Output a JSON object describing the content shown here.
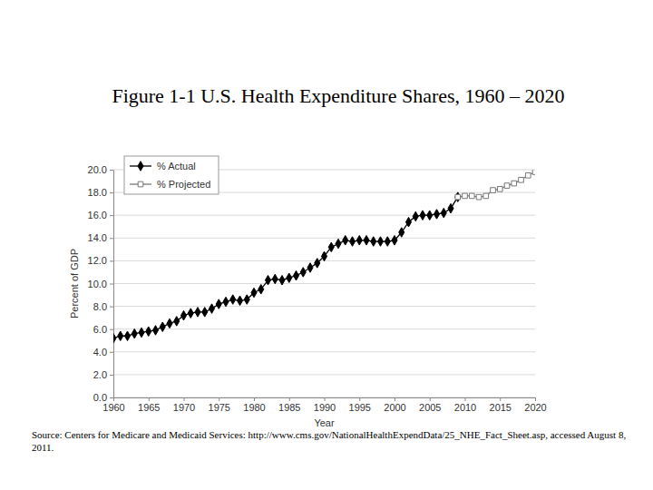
{
  "chart_data": {
    "type": "line",
    "title": "Figure 1-1 U.S. Health Expenditure Shares, 1960 – 2020",
    "x_label": "Year",
    "y_label": "Percent of GDP",
    "source": "Source: Centers for Medicare and Medicaid Services: http://www.cms.gov/NationalHealthExpendData/25_NHE_Fact_Sheet.asp, accessed August 8, 2011.",
    "x": [
      1960,
      1961,
      1962,
      1963,
      1964,
      1965,
      1966,
      1967,
      1968,
      1969,
      1970,
      1971,
      1972,
      1973,
      1974,
      1975,
      1976,
      1977,
      1978,
      1979,
      1980,
      1981,
      1982,
      1983,
      1984,
      1985,
      1986,
      1987,
      1988,
      1989,
      1990,
      1991,
      1992,
      1993,
      1994,
      1995,
      1996,
      1997,
      1998,
      1999,
      2000,
      2001,
      2002,
      2003,
      2004,
      2005,
      2006,
      2007,
      2008,
      2009,
      2010,
      2011,
      2012,
      2013,
      2014,
      2015,
      2016,
      2017,
      2018,
      2019,
      2020
    ],
    "series": [
      {
        "name": "% Actual",
        "color": "#000000",
        "marker": "diamond",
        "line_style": "solid",
        "values": [
          5.2,
          5.4,
          5.4,
          5.6,
          5.7,
          5.8,
          5.9,
          6.2,
          6.5,
          6.7,
          7.2,
          7.4,
          7.5,
          7.5,
          7.8,
          8.2,
          8.4,
          8.6,
          8.5,
          8.6,
          9.2,
          9.5,
          10.3,
          10.4,
          10.3,
          10.5,
          10.7,
          11.0,
          11.4,
          11.8,
          12.4,
          13.2,
          13.5,
          13.8,
          13.7,
          13.8,
          13.8,
          13.7,
          13.7,
          13.7,
          13.8,
          14.5,
          15.4,
          15.9,
          16.0,
          16.0,
          16.1,
          16.2,
          16.6,
          17.6,
          null,
          null,
          null,
          null,
          null,
          null,
          null,
          null,
          null,
          null,
          null
        ]
      },
      {
        "name": "% Projected",
        "color": "#777777",
        "marker": "open-square",
        "line_style": "solid",
        "values": [
          null,
          null,
          null,
          null,
          null,
          null,
          null,
          null,
          null,
          null,
          null,
          null,
          null,
          null,
          null,
          null,
          null,
          null,
          null,
          null,
          null,
          null,
          null,
          null,
          null,
          null,
          null,
          null,
          null,
          null,
          null,
          null,
          null,
          null,
          null,
          null,
          null,
          null,
          null,
          null,
          null,
          null,
          null,
          null,
          null,
          null,
          null,
          null,
          null,
          17.6,
          17.7,
          17.7,
          17.6,
          17.7,
          18.2,
          18.3,
          18.6,
          18.8,
          19.1,
          19.5,
          19.8
        ]
      }
    ],
    "xlim": [
      1960,
      2020
    ],
    "xticks": [
      1960,
      1965,
      1970,
      1975,
      1980,
      1985,
      1990,
      1995,
      2000,
      2005,
      2010,
      2015,
      2020
    ],
    "ylim": [
      0,
      20
    ],
    "yticks": [
      {
        "value": 0,
        "label": "0.0"
      },
      {
        "value": 2,
        "label": "2.0"
      },
      {
        "value": 4,
        "label": "4.0"
      },
      {
        "value": 6,
        "label": "6.0"
      },
      {
        "value": 8,
        "label": "8.0"
      },
      {
        "value": 10,
        "label": "10.0"
      },
      {
        "value": 12,
        "label": "12.0"
      },
      {
        "value": 14,
        "label": "14.0"
      },
      {
        "value": 16,
        "label": "16.0"
      },
      {
        "value": 18,
        "label": "18.0"
      },
      {
        "value": 20,
        "label": "20.0"
      }
    ],
    "grid": true,
    "legend": "upper left"
  }
}
